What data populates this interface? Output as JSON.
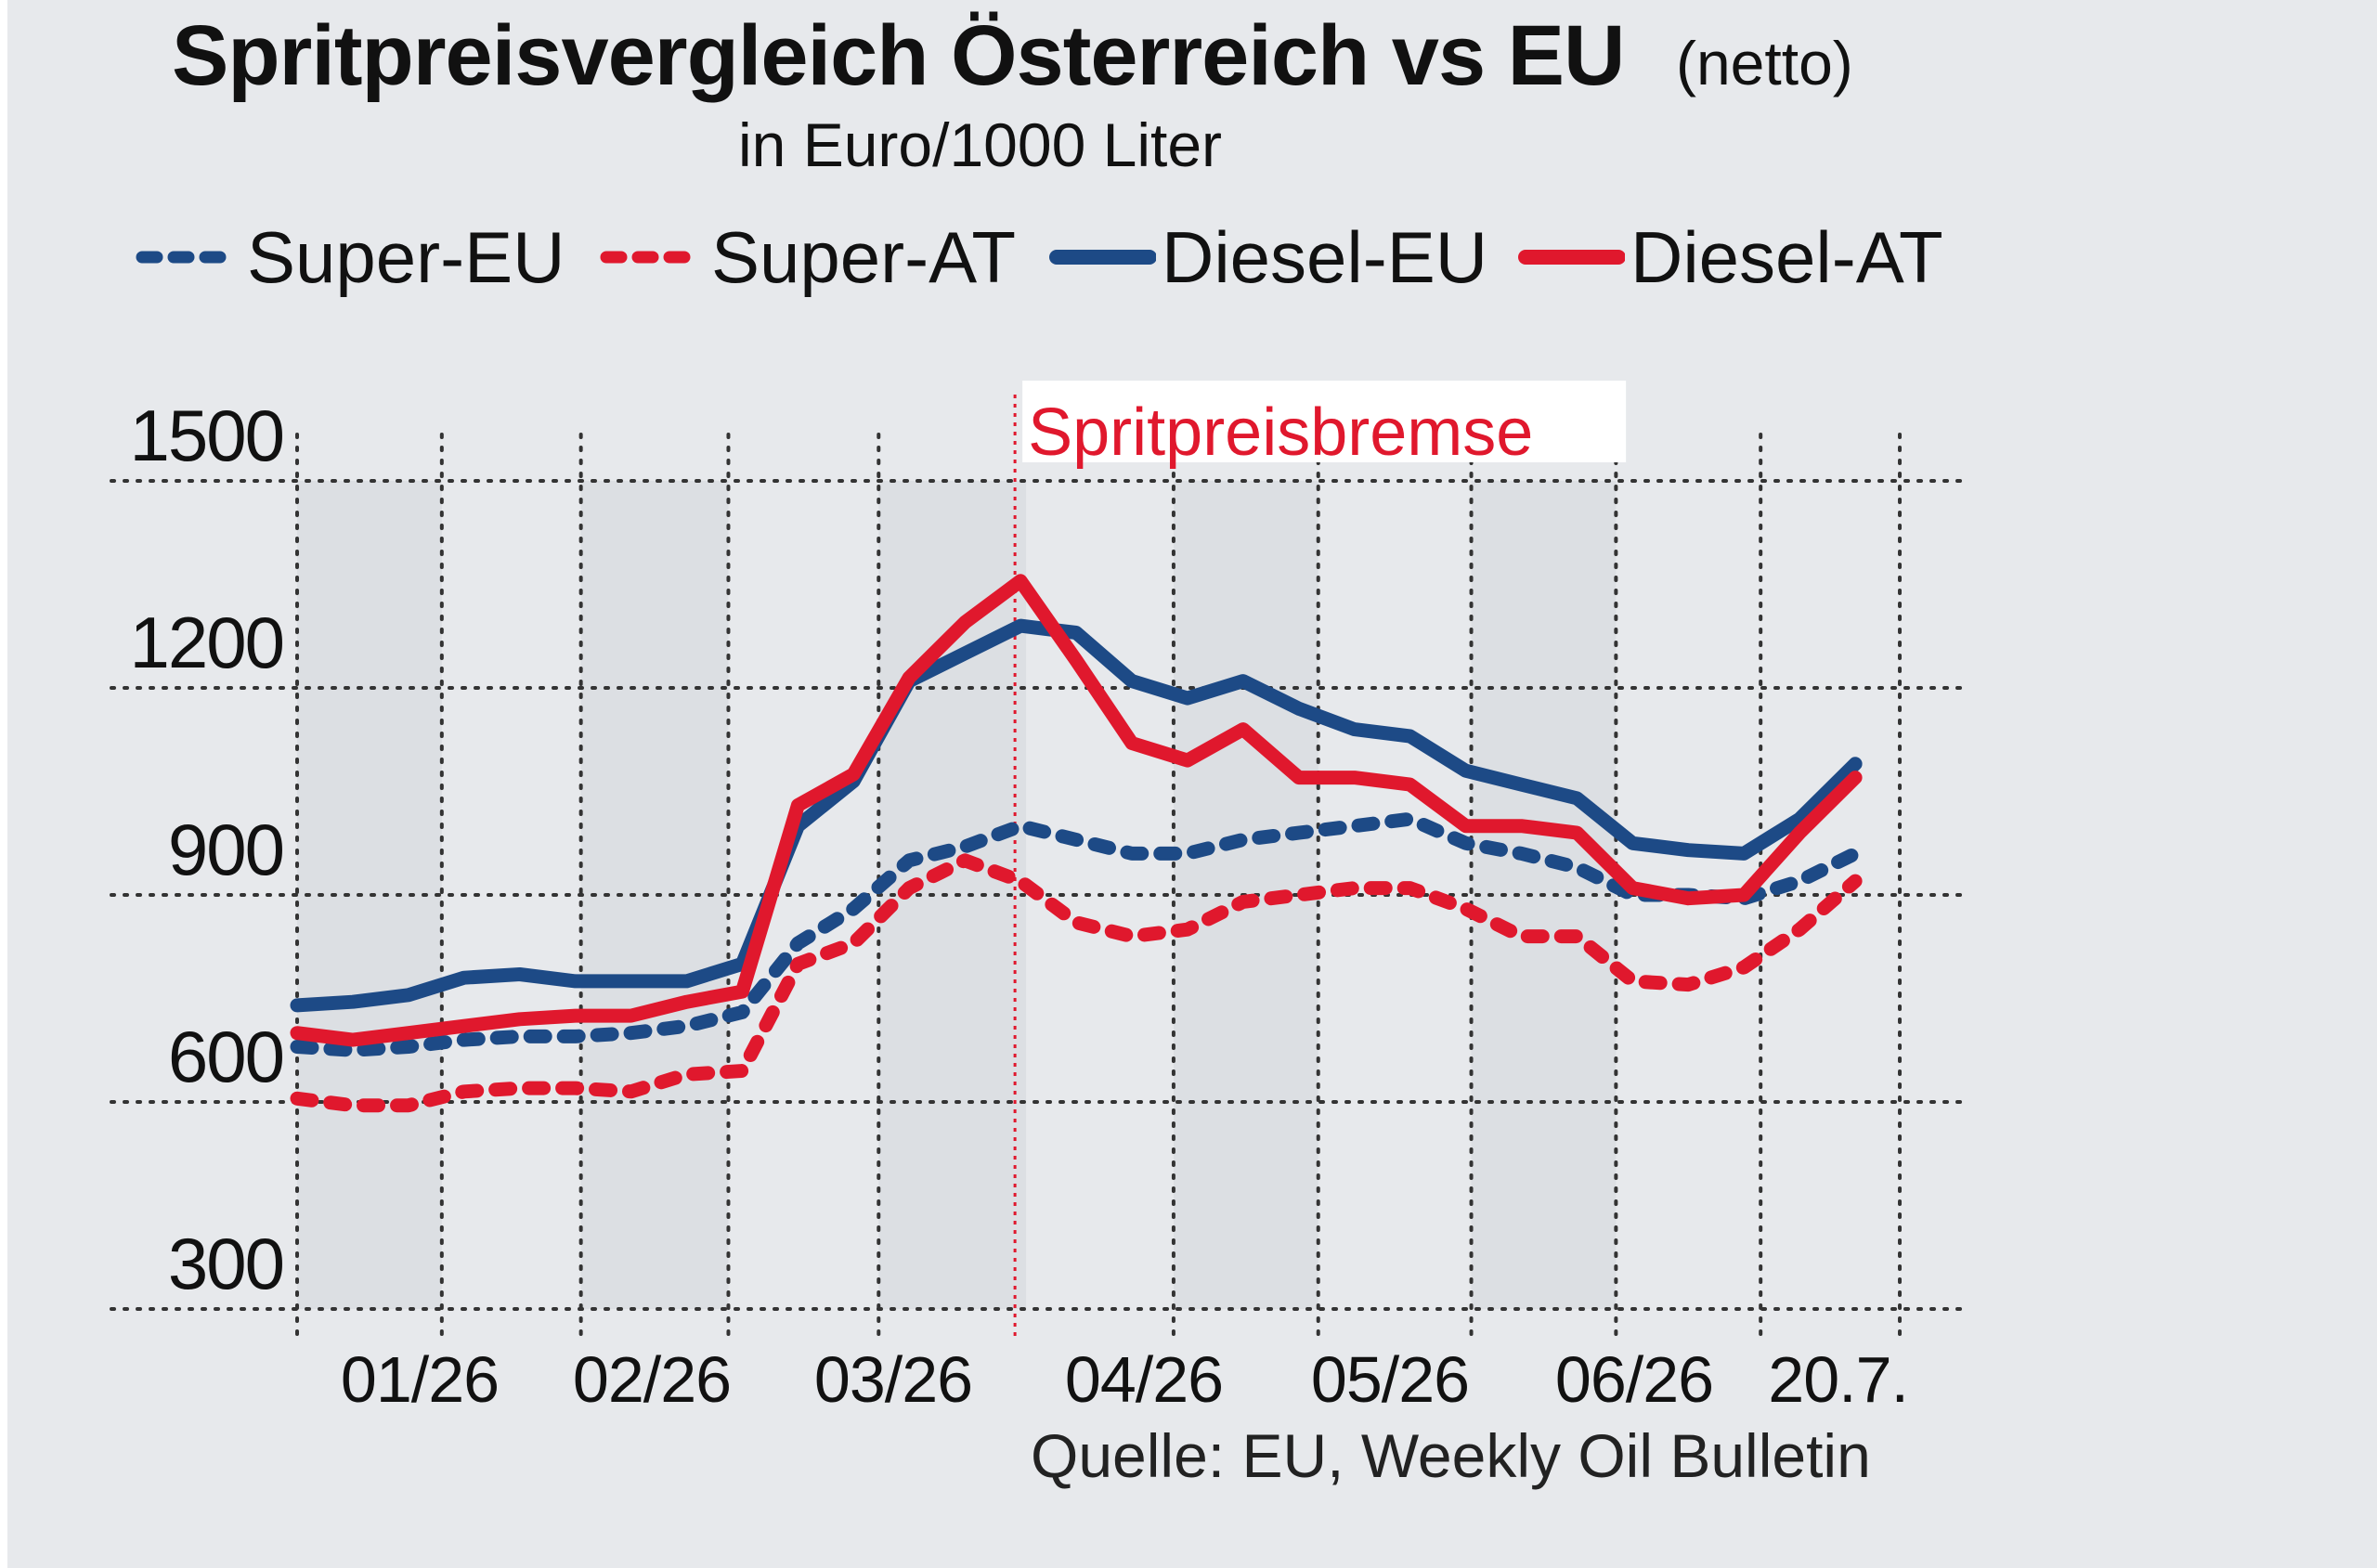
{
  "title": "Spritpreisvergleich Österreich vs EU",
  "title_note": "(netto)",
  "subtitle": "in Euro/1000 Liter",
  "source": "Quelle: EU, Weekly Oil Bulletin",
  "colors": {
    "eu_blue": "#1d4a86",
    "at_red": "#e0182d",
    "background": "#e7e9ec",
    "shade": "#dcdfe3"
  },
  "chart_data": {
    "type": "line",
    "title": "Spritpreisvergleich Österreich vs EU",
    "ylabel": "in Euro/1000 Liter",
    "xlabel": "",
    "ylim": [
      300,
      1500
    ],
    "yticks": [
      300,
      600,
      900,
      1200,
      1500
    ],
    "xlim": [
      0,
      29
    ],
    "x_tick_labels": [
      "01/26",
      "02/26",
      "03/26",
      "04/26",
      "05/26",
      "06/26",
      "20.7."
    ],
    "grid": true,
    "annotation": {
      "label": "Spritpreisbremse",
      "at_week": 12.9,
      "color": "#e0182d"
    },
    "legend": {
      "position": "top"
    },
    "x": [
      0,
      1,
      2,
      3,
      4,
      5,
      6,
      7,
      8,
      9,
      10,
      11,
      12,
      13,
      14,
      15,
      16,
      17,
      18,
      19,
      20,
      21,
      22,
      23,
      24,
      25,
      26,
      27,
      28
    ],
    "series": [
      {
        "name": "Super-EU",
        "style": "dotted",
        "color": "#1d4a86",
        "values": [
          680,
          675,
          680,
          690,
          695,
          695,
          700,
          710,
          730,
          830,
          880,
          950,
          970,
          1000,
          980,
          960,
          960,
          980,
          990,
          1000,
          1010,
          975,
          960,
          940,
          900,
          900,
          895,
          920,
          960
        ]
      },
      {
        "name": "Super-AT",
        "style": "dotted",
        "color": "#e0182d",
        "values": [
          605,
          595,
          595,
          615,
          620,
          620,
          615,
          640,
          645,
          800,
          830,
          910,
          950,
          920,
          860,
          840,
          850,
          890,
          900,
          910,
          910,
          880,
          840,
          840,
          775,
          770,
          795,
          850,
          920
        ]
      },
      {
        "name": "Diesel-EU",
        "style": "solid",
        "color": "#1d4a86",
        "values": [
          740,
          745,
          755,
          780,
          785,
          775,
          775,
          775,
          800,
          1000,
          1065,
          1210,
          1250,
          1290,
          1280,
          1210,
          1185,
          1210,
          1170,
          1140,
          1130,
          1080,
          1060,
          1040,
          975,
          965,
          960,
          1010,
          1090
        ]
      },
      {
        "name": "Diesel-AT",
        "style": "solid",
        "color": "#e0182d",
        "values": [
          700,
          690,
          700,
          710,
          720,
          725,
          725,
          745,
          760,
          1030,
          1075,
          1215,
          1295,
          1355,
          1240,
          1120,
          1095,
          1140,
          1070,
          1070,
          1060,
          1000,
          1000,
          990,
          910,
          895,
          900,
          990,
          1070
        ]
      }
    ]
  }
}
